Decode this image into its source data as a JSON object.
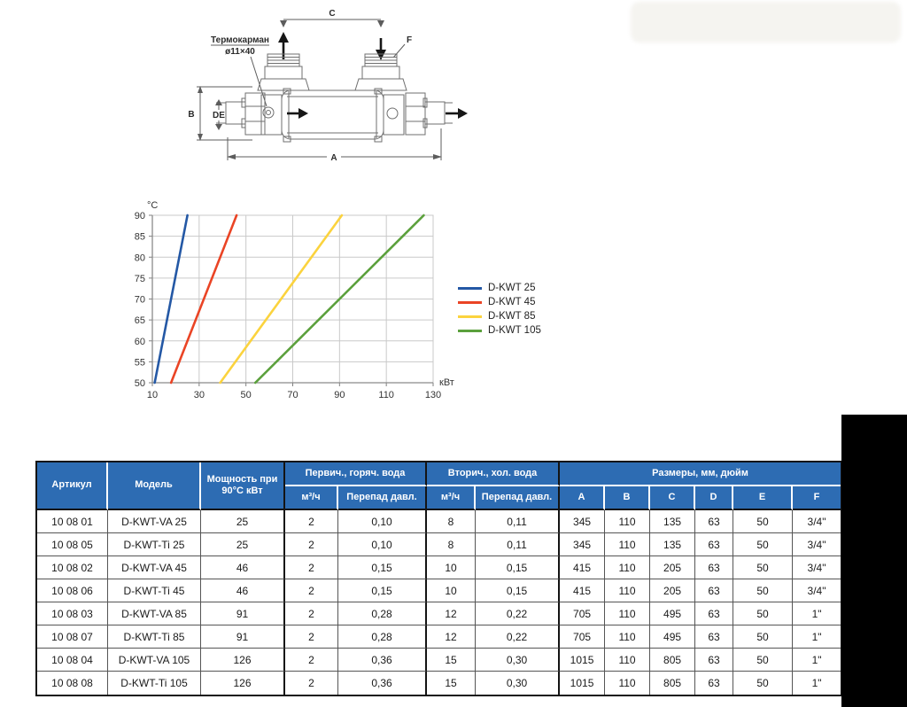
{
  "diagram": {
    "labels": {
      "thermowell_line1": "Термокарман",
      "thermowell_line2": "ø11×40",
      "dim_a": "A",
      "dim_b": "B",
      "dim_c": "C",
      "dim_de": "DE",
      "dim_f": "F"
    }
  },
  "chart_data": {
    "type": "line",
    "title": "",
    "xlabel": "кВт",
    "ylabel": "°C",
    "xlim": [
      10,
      130
    ],
    "ylim": [
      50,
      90
    ],
    "x_ticks": [
      10,
      30,
      50,
      70,
      90,
      110,
      130
    ],
    "y_ticks": [
      50,
      55,
      60,
      65,
      70,
      75,
      80,
      85,
      90
    ],
    "grid": true,
    "legend_position": "right",
    "series": [
      {
        "name": "D-KWT 25",
        "color": "#2458a5",
        "points": [
          [
            11,
            50
          ],
          [
            25,
            90
          ]
        ]
      },
      {
        "name": "D-KWT 45",
        "color": "#ea4425",
        "points": [
          [
            18,
            50
          ],
          [
            46,
            90
          ]
        ]
      },
      {
        "name": "D-KWT 85",
        "color": "#fbd33e",
        "points": [
          [
            39,
            50
          ],
          [
            91,
            90
          ]
        ]
      },
      {
        "name": "D-KWT 105",
        "color": "#5ba03c",
        "points": [
          [
            54,
            50
          ],
          [
            126,
            90
          ]
        ]
      }
    ]
  },
  "table": {
    "header_bg": "#2d6cb3",
    "header": {
      "artikul": "Артикул",
      "model": "Модель",
      "power": "Мощность при 90°С кВт",
      "primary_group": "Первич., горяч. вода",
      "secondary_group": "Вторич., хол. вода",
      "dims_group": "Размеры, мм, дюйм",
      "flow": "м³/ч",
      "pressure_drop": "Перепад давл.",
      "dim_cols": [
        "A",
        "B",
        "C",
        "D",
        "E",
        "F"
      ]
    },
    "rows": [
      [
        "10 08 01",
        "D-KWT-VA 25",
        "25",
        "2",
        "0,10",
        "8",
        "0,11",
        "345",
        "110",
        "135",
        "63",
        "50",
        "3/4\""
      ],
      [
        "10 08 05",
        "D-KWT-Ti 25",
        "25",
        "2",
        "0,10",
        "8",
        "0,11",
        "345",
        "110",
        "135",
        "63",
        "50",
        "3/4\""
      ],
      [
        "10 08 02",
        "D-KWT-VA 45",
        "46",
        "2",
        "0,15",
        "10",
        "0,15",
        "415",
        "110",
        "205",
        "63",
        "50",
        "3/4\""
      ],
      [
        "10 08 06",
        "D-KWT-Ti 45",
        "46",
        "2",
        "0,15",
        "10",
        "0,15",
        "415",
        "110",
        "205",
        "63",
        "50",
        "3/4\""
      ],
      [
        "10 08 03",
        "D-KWT-VA 85",
        "91",
        "2",
        "0,28",
        "12",
        "0,22",
        "705",
        "110",
        "495",
        "63",
        "50",
        "1\""
      ],
      [
        "10 08 07",
        "D-KWT-Ti 85",
        "91",
        "2",
        "0,28",
        "12",
        "0,22",
        "705",
        "110",
        "495",
        "63",
        "50",
        "1\""
      ],
      [
        "10 08 04",
        "D-KWT-VA 105",
        "126",
        "2",
        "0,36",
        "15",
        "0,30",
        "1015",
        "110",
        "805",
        "63",
        "50",
        "1\""
      ],
      [
        "10 08 08",
        "D-KWT-Ti 105",
        "126",
        "2",
        "0,36",
        "15",
        "0,30",
        "1015",
        "110",
        "805",
        "63",
        "50",
        "1\""
      ]
    ]
  }
}
